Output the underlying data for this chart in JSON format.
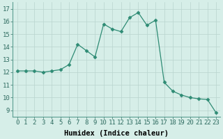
{
  "x": [
    0,
    1,
    2,
    3,
    4,
    5,
    6,
    7,
    8,
    9,
    10,
    11,
    12,
    13,
    14,
    15,
    16,
    17,
    18,
    19,
    20,
    21,
    22,
    23
  ],
  "y": [
    12.1,
    12.1,
    12.1,
    12.0,
    12.1,
    12.2,
    12.6,
    14.2,
    13.7,
    13.2,
    15.8,
    15.4,
    15.2,
    16.3,
    16.7,
    15.7,
    16.1,
    11.2,
    10.5,
    10.2,
    10.0,
    9.9,
    9.85,
    8.8
  ],
  "line_color": "#2e8b74",
  "marker": "D",
  "marker_size": 2.5,
  "bg_color": "#d6eee8",
  "grid_color": "#b8d4ce",
  "xlabel": "Humidex (Indice chaleur)",
  "xlabel_fontsize": 7.5,
  "ylim": [
    8.5,
    17.5
  ],
  "xlim": [
    -0.5,
    23.5
  ],
  "yticks": [
    9,
    10,
    11,
    12,
    13,
    14,
    15,
    16,
    17
  ],
  "xticks": [
    0,
    1,
    2,
    3,
    4,
    5,
    6,
    7,
    8,
    9,
    10,
    11,
    12,
    13,
    14,
    15,
    16,
    17,
    18,
    19,
    20,
    21,
    22,
    23
  ],
  "tick_fontsize": 6.5
}
